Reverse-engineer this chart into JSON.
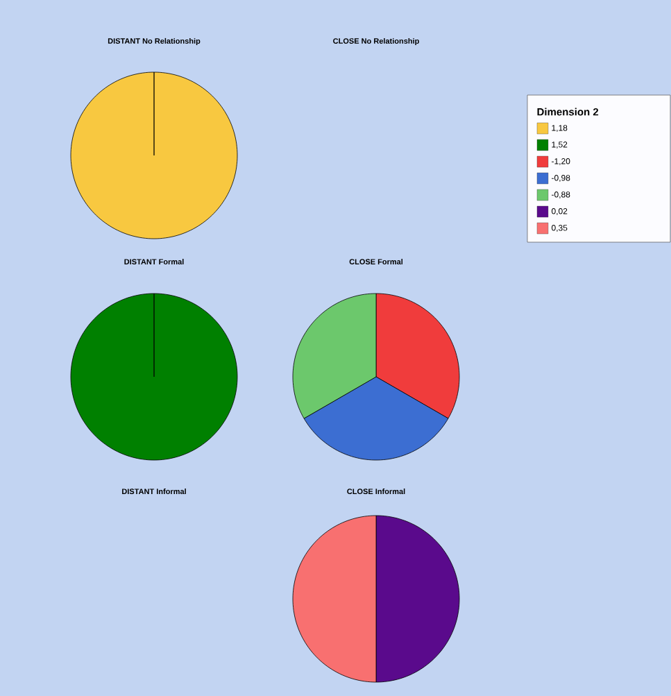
{
  "chart_data": [
    {
      "type": "pie",
      "title": "DISTANT No Relationship",
      "legend_title": "Dimension 2",
      "legend": "top right",
      "categories": [
        "1,18"
      ],
      "values": [
        100
      ],
      "colors": [
        "#f8c840"
      ]
    },
    {
      "type": "pie",
      "title": "CLOSE No Relationship"
    },
    {
      "type": "pie",
      "title": "DISTANT Formal",
      "legend": "top right",
      "categories": [
        "1,52"
      ],
      "values": [
        100
      ],
      "colors": [
        "#008000"
      ]
    },
    {
      "type": "pie",
      "title": "CLOSE Formal",
      "legend": "top right",
      "categories": [
        "-1,20",
        "-0,98",
        "-0,88"
      ],
      "values": [
        33.33,
        33.33,
        33.34
      ],
      "colors": [
        "#f03c3c",
        "#3c6ed2",
        "#6cc86c"
      ]
    },
    {
      "type": "pie",
      "title": "DISTANT Informal"
    },
    {
      "type": "pie",
      "title": "CLOSE Informal",
      "legend": "top right",
      "categories": [
        "0,02",
        "0,35"
      ],
      "values": [
        50,
        50
      ],
      "colors": [
        "#5a0a8c",
        "#f87070"
      ]
    }
  ]
}
